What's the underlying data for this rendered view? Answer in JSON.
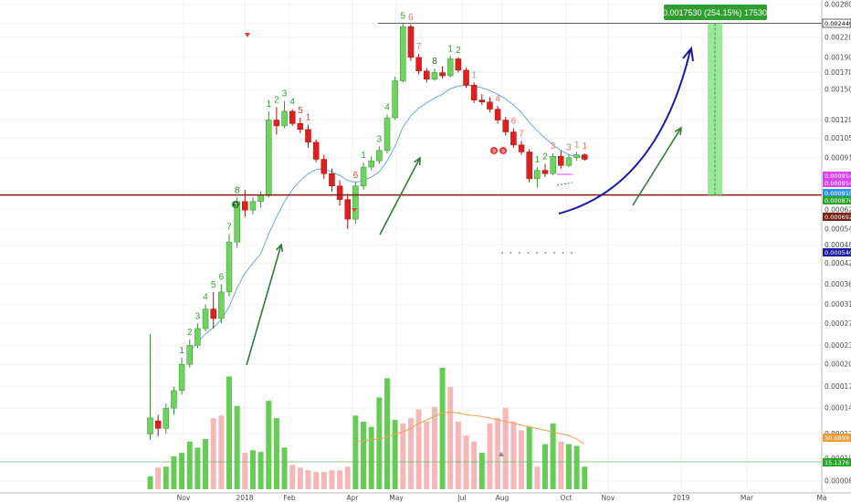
{
  "chart_data": {
    "type": "candlestick",
    "ylim": [
      8e-05,
      0.0028
    ],
    "y_scale": "log",
    "price_ticks": [
      "0.0028000",
      "0.0024400",
      "0.0022000",
      "0.0019000",
      "0.0017000",
      "0.0015000",
      "0.0012000",
      "0.0010500",
      "0.0009100",
      "0.0006200",
      "0.0005401",
      "0.0004800",
      "0.0004200",
      "0.0003600",
      "0.0003100",
      "0.0002700",
      "0.0002300",
      "0.0002000",
      "0.0001700",
      "0.0001450",
      "0.0001200",
      "0.0001000",
      "0.0000850"
    ],
    "x_labels": [
      "Nov",
      "2018",
      "Feb",
      "Apr",
      "May",
      "Jul",
      "Aug",
      "Oct",
      "Nov",
      "2019",
      "Mar",
      "Ma"
    ],
    "candles": [
      {
        "t": 0,
        "o": 0.00012,
        "h": 0.00025,
        "l": 0.000115,
        "c": 0.000135
      },
      {
        "t": 1,
        "o": 0.000132,
        "h": 0.000138,
        "l": 0.000118,
        "c": 0.000125
      },
      {
        "t": 2,
        "o": 0.000125,
        "h": 0.00015,
        "l": 0.00012,
        "c": 0.000145
      },
      {
        "t": 3,
        "o": 0.000145,
        "h": 0.00017,
        "l": 0.000138,
        "c": 0.000165
      },
      {
        "t": 4,
        "o": 0.000165,
        "h": 0.00021,
        "l": 0.00016,
        "c": 0.0002
      },
      {
        "t": 5,
        "o": 0.0002,
        "h": 0.00024,
        "l": 0.000195,
        "c": 0.00023
      },
      {
        "t": 6,
        "o": 0.00023,
        "h": 0.00027,
        "l": 0.000225,
        "c": 0.00026
      },
      {
        "t": 7,
        "o": 0.00026,
        "h": 0.00031,
        "l": 0.000255,
        "c": 0.0003
      },
      {
        "t": 8,
        "o": 0.0003,
        "h": 0.00034,
        "l": 0.00026,
        "c": 0.00028
      },
      {
        "t": 9,
        "o": 0.00028,
        "h": 0.00036,
        "l": 0.00027,
        "c": 0.00034
      },
      {
        "t": 10,
        "o": 0.00034,
        "h": 0.00052,
        "l": 0.00033,
        "c": 0.00049
      },
      {
        "t": 11,
        "o": 0.00049,
        "h": 0.00068,
        "l": 0.00047,
        "c": 0.00066
      },
      {
        "t": 12,
        "o": 0.00066,
        "h": 0.00072,
        "l": 0.00059,
        "c": 0.00062
      },
      {
        "t": 13,
        "o": 0.00062,
        "h": 0.00068,
        "l": 0.0006,
        "c": 0.00066
      },
      {
        "t": 14,
        "o": 0.00066,
        "h": 0.00071,
        "l": 0.00063,
        "c": 0.00069
      },
      {
        "t": 15,
        "o": 0.00069,
        "h": 0.00128,
        "l": 0.00068,
        "c": 0.0012
      },
      {
        "t": 16,
        "o": 0.0012,
        "h": 0.00132,
        "l": 0.00108,
        "c": 0.00115
      },
      {
        "t": 17,
        "o": 0.00115,
        "h": 0.00138,
        "l": 0.00113,
        "c": 0.00128
      },
      {
        "t": 18,
        "o": 0.00128,
        "h": 0.0013,
        "l": 0.00115,
        "c": 0.00117
      },
      {
        "t": 19,
        "o": 0.00117,
        "h": 0.00122,
        "l": 0.00109,
        "c": 0.00112
      },
      {
        "t": 20,
        "o": 0.00112,
        "h": 0.00116,
        "l": 0.00098,
        "c": 0.00102
      },
      {
        "t": 21,
        "o": 0.00102,
        "h": 0.00104,
        "l": 0.00088,
        "c": 0.0009
      },
      {
        "t": 22,
        "o": 0.0009,
        "h": 0.00093,
        "l": 0.00078,
        "c": 0.00081
      },
      {
        "t": 23,
        "o": 0.00081,
        "h": 0.00084,
        "l": 0.00071,
        "c": 0.00074
      },
      {
        "t": 24,
        "o": 0.00074,
        "h": 0.00077,
        "l": 0.00064,
        "c": 0.00067
      },
      {
        "t": 25,
        "o": 0.00067,
        "h": 0.0007,
        "l": 0.00054,
        "c": 0.00058
      },
      {
        "t": 26,
        "o": 0.00058,
        "h": 0.00076,
        "l": 0.00056,
        "c": 0.00074
      },
      {
        "t": 27,
        "o": 0.00074,
        "h": 0.00088,
        "l": 0.00072,
        "c": 0.00085
      },
      {
        "t": 28,
        "o": 0.00085,
        "h": 0.00092,
        "l": 0.00083,
        "c": 0.00089
      },
      {
        "t": 29,
        "o": 0.00089,
        "h": 0.00099,
        "l": 0.00087,
        "c": 0.00096
      },
      {
        "t": 30,
        "o": 0.00096,
        "h": 0.00125,
        "l": 0.00094,
        "c": 0.00122
      },
      {
        "t": 31,
        "o": 0.00122,
        "h": 0.00165,
        "l": 0.0012,
        "c": 0.0016
      },
      {
        "t": 32,
        "o": 0.0016,
        "h": 0.00244,
        "l": 0.00158,
        "c": 0.00238
      },
      {
        "t": 33,
        "o": 0.00238,
        "h": 0.00242,
        "l": 0.00185,
        "c": 0.0019
      },
      {
        "t": 34,
        "o": 0.0019,
        "h": 0.00195,
        "l": 0.00168,
        "c": 0.00172
      },
      {
        "t": 35,
        "o": 0.00172,
        "h": 0.00176,
        "l": 0.00158,
        "c": 0.00162
      },
      {
        "t": 36,
        "o": 0.00162,
        "h": 0.00175,
        "l": 0.0016,
        "c": 0.0017
      },
      {
        "t": 37,
        "o": 0.0017,
        "h": 0.00178,
        "l": 0.00163,
        "c": 0.00166
      },
      {
        "t": 38,
        "o": 0.00166,
        "h": 0.00192,
        "l": 0.00164,
        "c": 0.00188
      },
      {
        "t": 39,
        "o": 0.00188,
        "h": 0.0019,
        "l": 0.0017,
        "c": 0.00173
      },
      {
        "t": 40,
        "o": 0.00173,
        "h": 0.00176,
        "l": 0.00152,
        "c": 0.00155
      },
      {
        "t": 41,
        "o": 0.00155,
        "h": 0.00158,
        "l": 0.00136,
        "c": 0.00139
      },
      {
        "t": 42,
        "o": 0.00139,
        "h": 0.00145,
        "l": 0.00134,
        "c": 0.00137
      },
      {
        "t": 43,
        "o": 0.00137,
        "h": 0.00142,
        "l": 0.00127,
        "c": 0.0013
      },
      {
        "t": 44,
        "o": 0.0013,
        "h": 0.00133,
        "l": 0.00117,
        "c": 0.0012
      },
      {
        "t": 45,
        "o": 0.0012,
        "h": 0.00123,
        "l": 0.00107,
        "c": 0.0011
      },
      {
        "t": 46,
        "o": 0.0011,
        "h": 0.00113,
        "l": 0.00098,
        "c": 0.001
      },
      {
        "t": 47,
        "o": 0.001,
        "h": 0.00103,
        "l": 0.00093,
        "c": 0.00095
      },
      {
        "t": 48,
        "o": 0.00095,
        "h": 0.00097,
        "l": 0.00076,
        "c": 0.00078
      },
      {
        "t": 49,
        "o": 0.00078,
        "h": 0.00085,
        "l": 0.00073,
        "c": 0.00083
      },
      {
        "t": 50,
        "o": 0.00083,
        "h": 0.00087,
        "l": 0.00079,
        "c": 0.00081
      },
      {
        "t": 51,
        "o": 0.00081,
        "h": 0.00094,
        "l": 0.0008,
        "c": 0.00092
      },
      {
        "t": 52,
        "o": 0.00092,
        "h": 0.00096,
        "l": 0.00084,
        "c": 0.00086
      },
      {
        "t": 53,
        "o": 0.00086,
        "h": 0.00093,
        "l": 0.00085,
        "c": 0.00091
      },
      {
        "t": 54,
        "o": 0.00091,
        "h": 0.00095,
        "l": 0.00089,
        "c": 0.00093
      },
      {
        "t": 55,
        "o": 0.00093,
        "h": 0.00094,
        "l": 0.00089,
        "c": 0.0009
      }
    ],
    "volume": [
      {
        "v": 15,
        "up": true
      },
      {
        "v": 25,
        "up": false
      },
      {
        "v": 26,
        "up": true
      },
      {
        "v": 38,
        "up": true
      },
      {
        "v": 42,
        "up": true
      },
      {
        "v": 55,
        "up": true
      },
      {
        "v": 48,
        "up": true
      },
      {
        "v": 58,
        "up": true
      },
      {
        "v": 82,
        "up": false
      },
      {
        "v": 85,
        "up": false
      },
      {
        "v": 130,
        "up": true
      },
      {
        "v": 96,
        "up": true
      },
      {
        "v": 42,
        "up": false
      },
      {
        "v": 45,
        "up": true
      },
      {
        "v": 43,
        "up": true
      },
      {
        "v": 102,
        "up": true
      },
      {
        "v": 82,
        "up": true
      },
      {
        "v": 48,
        "up": true
      },
      {
        "v": 28,
        "up": false
      },
      {
        "v": 25,
        "up": false
      },
      {
        "v": 22,
        "up": false
      },
      {
        "v": 20,
        "up": false
      },
      {
        "v": 20,
        "up": false
      },
      {
        "v": 22,
        "up": false
      },
      {
        "v": 22,
        "up": false
      },
      {
        "v": 26,
        "up": false
      },
      {
        "v": 85,
        "up": true
      },
      {
        "v": 78,
        "up": true
      },
      {
        "v": 72,
        "up": true
      },
      {
        "v": 106,
        "up": true
      },
      {
        "v": 128,
        "up": true
      },
      {
        "v": 80,
        "up": true
      },
      {
        "v": 76,
        "up": false
      },
      {
        "v": 82,
        "up": false
      },
      {
        "v": 92,
        "up": false
      },
      {
        "v": 78,
        "up": false
      },
      {
        "v": 95,
        "up": false
      },
      {
        "v": 140,
        "up": true
      },
      {
        "v": 118,
        "up": false
      },
      {
        "v": 78,
        "up": false
      },
      {
        "v": 62,
        "up": false
      },
      {
        "v": 55,
        "up": false
      },
      {
        "v": 42,
        "up": true
      },
      {
        "v": 76,
        "up": false
      },
      {
        "v": 82,
        "up": false
      },
      {
        "v": 94,
        "up": false
      },
      {
        "v": 78,
        "up": false
      },
      {
        "v": 68,
        "up": false
      },
      {
        "v": 72,
        "up": true
      },
      {
        "v": 26,
        "up": false
      },
      {
        "v": 52,
        "up": true
      },
      {
        "v": 76,
        "up": true
      },
      {
        "v": 55,
        "up": false
      },
      {
        "v": 52,
        "up": true
      },
      {
        "v": 50,
        "up": true
      },
      {
        "v": 26,
        "up": true
      }
    ],
    "volume_ma": [
      null,
      null,
      null,
      null,
      null,
      null,
      null,
      null,
      null,
      null,
      null,
      null,
      null,
      null,
      null,
      null,
      null,
      null,
      null,
      null,
      null,
      null,
      null,
      null,
      null,
      null,
      55,
      56,
      57,
      58,
      60,
      64,
      66,
      70,
      76,
      80,
      84,
      88,
      89,
      88,
      86,
      85,
      84,
      82,
      80,
      78,
      76,
      74,
      72,
      70,
      68,
      66,
      64,
      62,
      58,
      52
    ],
    "ema": [
      null,
      null,
      null,
      null,
      null,
      0.00022,
      0.000235,
      0.00025,
      0.000262,
      0.000278,
      0.000305,
      0.00035,
      0.00039,
      0.00042,
      0.00045,
      0.00052,
      0.00059,
      0.00066,
      0.00072,
      0.00077,
      0.00081,
      0.000835,
      0.00084,
      0.00082,
      0.0008,
      0.00077,
      0.00076,
      0.00077,
      0.00079,
      0.00082,
      0.00089,
      0.00099,
      0.00114,
      0.00124,
      0.00131,
      0.00136,
      0.00141,
      0.00145,
      0.00151,
      0.00154,
      0.00155,
      0.00154,
      0.00152,
      0.00149,
      0.00145,
      0.0014,
      0.00134,
      0.00127,
      0.00118,
      0.00111,
      0.00105,
      0.001,
      0.00096,
      0.00093,
      0.00092,
      0.00091
    ],
    "td_labels": [
      {
        "t": 4,
        "text": "1",
        "color": "#2e9e2e",
        "pos": "above"
      },
      {
        "t": 5,
        "text": "2",
        "color": "#2e9e2e",
        "pos": "above"
      },
      {
        "t": 6,
        "text": "3",
        "color": "#2e9e2e",
        "pos": "above"
      },
      {
        "t": 7,
        "text": "4",
        "color": "#2e9e2e",
        "pos": "above"
      },
      {
        "t": 8,
        "text": "5",
        "color": "#2e9e2e",
        "pos": "above"
      },
      {
        "t": 9,
        "text": "6",
        "color": "#2e9e2e",
        "pos": "above"
      },
      {
        "t": 10,
        "text": "7",
        "color": "#2e9e2e",
        "pos": "above"
      },
      {
        "t": 11,
        "text": "8",
        "color": "#1e7a1e",
        "pos": "above"
      },
      {
        "t": 15,
        "text": "1",
        "color": "#2e9e2e",
        "pos": "above"
      },
      {
        "t": 16,
        "text": "2",
        "color": "#2e9e2e",
        "pos": "above"
      },
      {
        "t": 17,
        "text": "3",
        "color": "#2e9e2e",
        "pos": "above"
      },
      {
        "t": 18,
        "text": "4",
        "color": "#2e9e2e",
        "pos": "above"
      },
      {
        "t": 19,
        "text": "5",
        "color": "#e53935",
        "pos": "above"
      },
      {
        "t": 20,
        "text": "1",
        "color": "#e53935",
        "pos": "above"
      },
      {
        "t": 26,
        "text": "6",
        "color": "#e53935",
        "pos": "above"
      },
      {
        "t": 27,
        "text": "1",
        "color": "#2e9e2e",
        "pos": "above"
      },
      {
        "t": 29,
        "text": "3",
        "color": "#2e9e2e",
        "pos": "above"
      },
      {
        "t": 30,
        "text": "4",
        "color": "#2e9e2e",
        "pos": "above"
      },
      {
        "t": 32,
        "text": "5",
        "color": "#2e9e2e",
        "pos": "above"
      },
      {
        "t": 33,
        "text": "6",
        "color": "#e57373",
        "pos": "above"
      },
      {
        "t": 34,
        "text": "7",
        "color": "#e57373",
        "pos": "above"
      },
      {
        "t": 36,
        "text": "8",
        "color": "#1e7a1e",
        "pos": "above"
      },
      {
        "t": 38,
        "text": "1",
        "color": "#2e9e2e",
        "pos": "above"
      },
      {
        "t": 39,
        "text": "2",
        "color": "#2e9e2e",
        "pos": "above"
      },
      {
        "t": 41,
        "text": "1",
        "color": "#e57373",
        "pos": "above"
      },
      {
        "t": 44,
        "text": "4",
        "color": "#e57373",
        "pos": "above"
      },
      {
        "t": 46,
        "text": "6",
        "color": "#e57373",
        "pos": "above"
      },
      {
        "t": 47,
        "text": "7",
        "color": "#e57373",
        "pos": "above"
      },
      {
        "t": 49,
        "text": "1",
        "color": "#2e9e2e",
        "pos": "above"
      },
      {
        "t": 50,
        "text": "2",
        "color": "#2e9e2e",
        "pos": "above"
      },
      {
        "t": 51,
        "text": "3",
        "color": "#e57373",
        "pos": "above"
      },
      {
        "t": 53,
        "text": "3",
        "color": "#e57373",
        "pos": "above"
      },
      {
        "t": 54,
        "text": "1",
        "color": "#e57373",
        "pos": "above"
      },
      {
        "t": 55,
        "text": "1",
        "color": "#e57373",
        "pos": "above"
      }
    ],
    "target_callout": "0.0017530 (254.15%) 17530",
    "price_tags": [
      {
        "text": "0.0024400",
        "color": "#ffffff",
        "text_color": "#000000",
        "border": "#000000",
        "value": 0.00244
      },
      {
        "text": "0.0009140",
        "color": "#e040fb",
        "text_color": "#ffffff",
        "value": 0.000914
      },
      {
        "text": "0.0009140",
        "color": "#e040fb",
        "text_color": "#ffffff",
        "value": 0.000914
      },
      {
        "text": "0.0009108",
        "color": "#2196f3",
        "text_color": "#ffffff",
        "value": 0.0009108
      },
      {
        "text": "0.0008701",
        "color": "#26a826",
        "text_color": "#ffffff",
        "value": 0.0008701
      },
      {
        "text": "0.0006927",
        "color": "#7b1f0f",
        "text_color": "#ffffff",
        "value": 0.0006927
      },
      {
        "text": "0.0005401",
        "color": "#1a1aaa",
        "text_color": "#ffffff",
        "value": 0.0005401
      }
    ],
    "volume_tags": [
      {
        "text": "30.6898",
        "color": "#f59b2b"
      },
      {
        "text": "15.1376",
        "color": "#26a826"
      }
    ],
    "support_level": 0.0006927,
    "resistance_level": 0.00244,
    "colors": {
      "up": "#6fd35f",
      "down": "#e0201f",
      "vol_up": "#66cc55",
      "vol_down": "#f4b8b8",
      "ema": "#6aa8d8",
      "vol_ma": "#f0a050",
      "support": "#7b1f0f",
      "target_box": "#7ee07e",
      "arrow_green": "#2e7d32",
      "arrow_blue": "#1a1aaa"
    }
  }
}
